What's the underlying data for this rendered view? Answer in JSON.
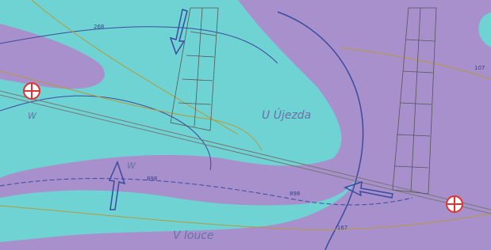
{
  "labels": [
    "268",
    "U Újezda",
    "V louce",
    "W",
    "W",
    "898",
    "898",
    "167",
    "107"
  ]
}
